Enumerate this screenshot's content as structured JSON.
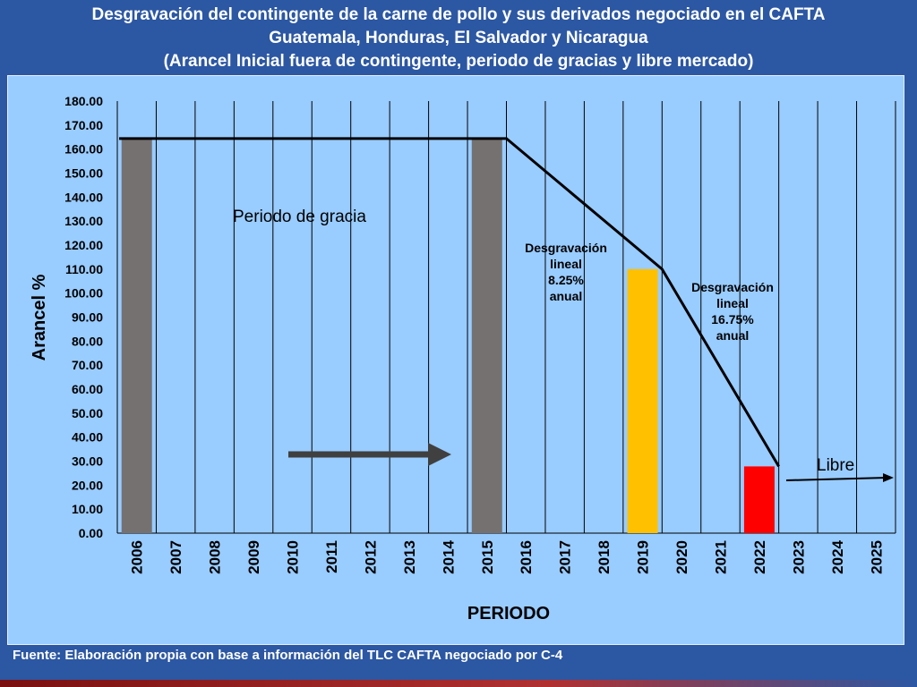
{
  "title": {
    "line1": "Desgravación del contingente de la carne de pollo y sus derivados negociado en el CAFTA",
    "line2": "Guatemala, Honduras, El Salvador y Nicaragua",
    "line3": "(Arancel Inicial fuera de contingente, periodo de gracias y libre mercado)"
  },
  "source": "Fuente: Elaboración propia con base a información del TLC CAFTA negociado por C-4",
  "colors": {
    "background": "#2c57a3",
    "plot_area": "#99ccff",
    "bar_grey": "#767171",
    "bar_yellow": "#ffc000",
    "bar_red": "#ff0000",
    "arrow_grey": "#404040"
  },
  "chart_data": {
    "type": "bar",
    "title": "Desgravación del contingente de la carne de pollo y sus derivados negociado en el CAFTA",
    "xlabel": "PERIODO",
    "ylabel": "Arancel %",
    "ylim": [
      0,
      180
    ],
    "ytick_step": 10,
    "yticks": [
      "0.00",
      "10.00",
      "20.00",
      "30.00",
      "40.00",
      "50.00",
      "60.00",
      "70.00",
      "80.00",
      "90.00",
      "100.00",
      "110.00",
      "120.00",
      "130.00",
      "140.00",
      "150.00",
      "160.00",
      "170.00",
      "180.00"
    ],
    "categories": [
      "2006",
      "2007",
      "2008",
      "2009",
      "2010",
      "2011",
      "2012",
      "2013",
      "2014",
      "2015",
      "2016",
      "2017",
      "2018",
      "2019",
      "2020",
      "2021",
      "2022",
      "2023",
      "2024",
      "2025"
    ],
    "bars": [
      {
        "category": "2006",
        "value": 164.4,
        "color": "#767171"
      },
      {
        "category": "2015",
        "value": 164.4,
        "color": "#767171"
      },
      {
        "category": "2019",
        "value": 110.0,
        "color": "#ffc000"
      },
      {
        "category": "2022",
        "value": 27.8,
        "color": "#ff0000"
      }
    ],
    "line": [
      {
        "x": "2006",
        "y": 164.4
      },
      {
        "x": "2015",
        "y": 164.4
      },
      {
        "x": "2019",
        "y": 110.0
      },
      {
        "x": "2022",
        "y": 27.8
      }
    ],
    "grid": "vertical",
    "annotations": {
      "grace": "Periodo de gracia",
      "phase1": [
        "Desgravación",
        "lineal",
        "8.25%",
        "anual"
      ],
      "phase2": [
        "Desgravación",
        "lineal",
        "16.75%",
        "anual"
      ],
      "free": "Libre"
    }
  }
}
